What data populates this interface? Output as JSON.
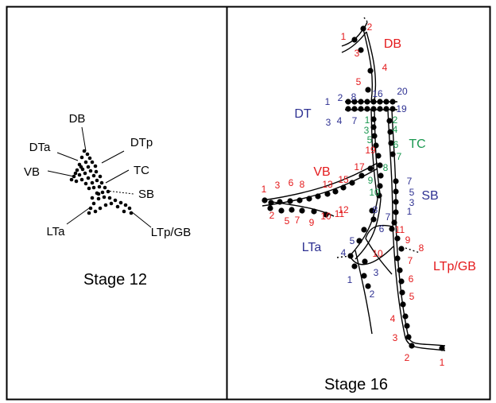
{
  "colors": {
    "red": "#e41a1c",
    "blue": "#2e3192",
    "green": "#1a9850",
    "black": "#000000"
  },
  "panel_left": {
    "title": "Stage 12",
    "labels": [
      "DB",
      "DTa",
      "DTp",
      "VB",
      "TC",
      "SB",
      "LTa",
      "LTp/GB"
    ]
  },
  "panel_right": {
    "title": "Stage 16",
    "region_labels": {
      "DB": "DB",
      "DT": "DT",
      "TC": "TC",
      "VB": "VB",
      "SB": "SB",
      "LTa": "LTa",
      "LTpGB": "LTp/GB"
    },
    "numbers": {
      "db": [
        "1",
        "2",
        "3",
        "4",
        "5"
      ],
      "dt": [
        "1",
        "2",
        "3",
        "4",
        "7",
        "8",
        "16",
        "19",
        "20"
      ],
      "tc": [
        "1",
        "2",
        "3",
        "4",
        "5",
        "6",
        "7",
        "8",
        "9",
        "10"
      ],
      "vb": [
        "1",
        "2",
        "3",
        "5",
        "6",
        "7",
        "8",
        "9",
        "10",
        "11",
        "12",
        "13",
        "15",
        "17",
        "19"
      ],
      "sb": [
        "7",
        "5",
        "3",
        "1",
        "8",
        "7",
        "6"
      ],
      "lta": [
        "4",
        "5",
        "1",
        "2",
        "3"
      ],
      "ltp": [
        "11",
        "9",
        "8",
        "10",
        "7",
        "6",
        "5",
        "4",
        "3",
        "2",
        "1"
      ]
    }
  }
}
